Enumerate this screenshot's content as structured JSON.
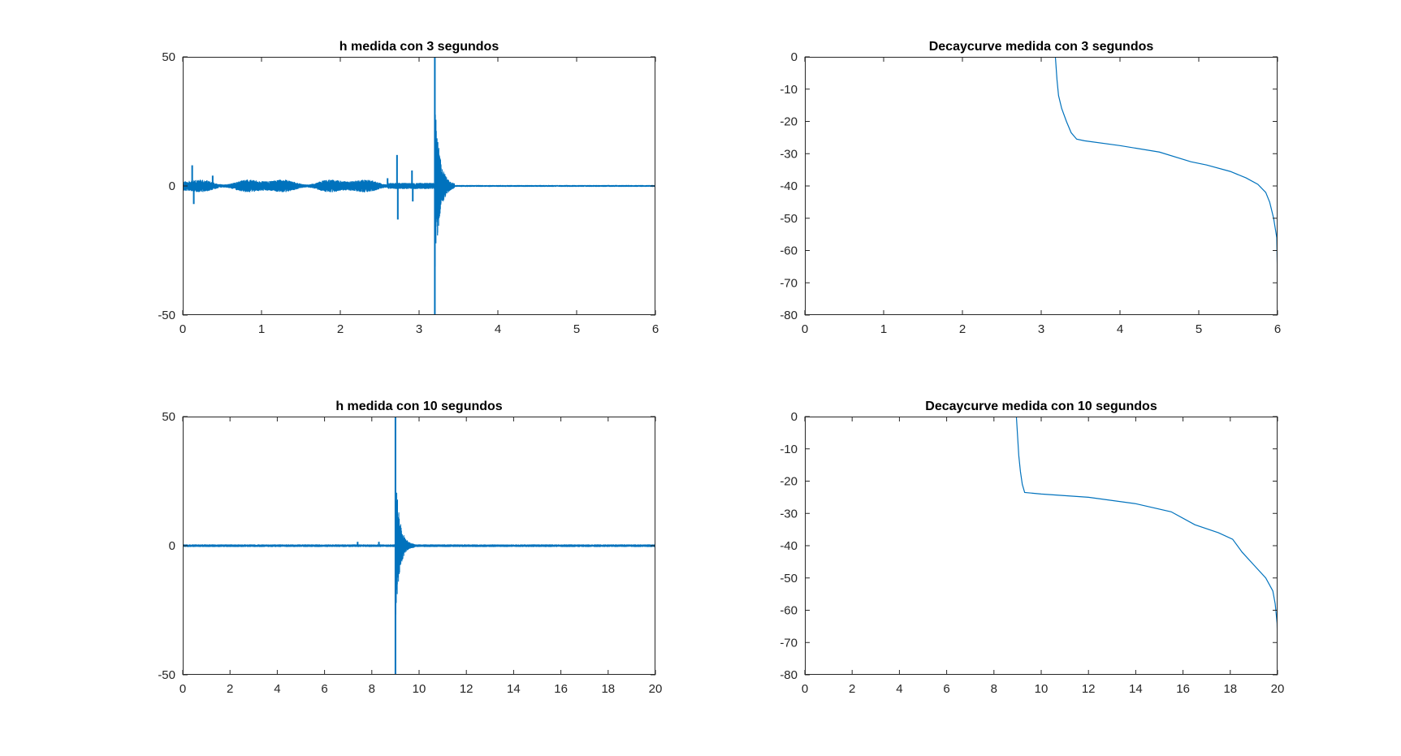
{
  "figure": {
    "background": "#ffffff",
    "line_color": "#0072bd",
    "axis_color": "#262626"
  },
  "chart_data": [
    {
      "id": "h3",
      "type": "line",
      "title": "h medida con 3 segundos",
      "xlabel": "",
      "ylabel": "",
      "xlim": [
        0,
        6
      ],
      "ylim": [
        -50,
        50
      ],
      "xticks": [
        0,
        1,
        2,
        3,
        4,
        5,
        6
      ],
      "yticks": [
        -50,
        0,
        50
      ],
      "grid": false,
      "series_style": "impulse",
      "spikes": [
        {
          "x": 0.12,
          "amp": 8
        },
        {
          "x": 0.14,
          "amp": -7
        },
        {
          "x": 0.38,
          "amp": 4
        },
        {
          "x": 2.6,
          "amp": 3
        },
        {
          "x": 2.72,
          "amp": 12
        },
        {
          "x": 2.73,
          "amp": -13
        },
        {
          "x": 2.91,
          "amp": 6
        },
        {
          "x": 2.92,
          "amp": -6
        },
        {
          "x": 3.2,
          "amp": 50
        },
        {
          "x": 3.2,
          "amp": -50
        }
      ],
      "decay_peak_x": 3.2
    },
    {
      "id": "dc3",
      "type": "line",
      "title": "Decaycurve medida con 3 segundos",
      "xlabel": "",
      "ylabel": "",
      "xlim": [
        0,
        6
      ],
      "ylim": [
        -80,
        0
      ],
      "xticks": [
        0,
        1,
        2,
        3,
        4,
        5,
        6
      ],
      "yticks": [
        -80,
        -70,
        -60,
        -50,
        -40,
        -30,
        -20,
        -10,
        0
      ],
      "grid": false,
      "x": [
        0,
        3.18,
        3.2,
        3.22,
        3.26,
        3.32,
        3.38,
        3.45,
        3.55,
        4.0,
        4.5,
        4.9,
        5.1,
        5.4,
        5.6,
        5.75,
        5.85,
        5.9,
        5.95,
        5.99,
        6.0,
        6.0
      ],
      "y": [
        0,
        0,
        -7,
        -12,
        -16,
        -20,
        -23.5,
        -25.5,
        -26,
        -27.5,
        -29.5,
        -32.5,
        -33.5,
        -35.5,
        -37.5,
        -39.5,
        -42,
        -45,
        -50,
        -56,
        -70,
        -80
      ]
    },
    {
      "id": "h10",
      "type": "line",
      "title": "h medida con 10 segundos",
      "xlabel": "",
      "ylabel": "",
      "xlim": [
        0,
        20
      ],
      "ylim": [
        -50,
        50
      ],
      "xticks": [
        0,
        2,
        4,
        6,
        8,
        10,
        12,
        14,
        16,
        18,
        20
      ],
      "yticks": [
        -50,
        0,
        50
      ],
      "grid": false,
      "series_style": "impulse",
      "spikes": [
        {
          "x": 7.4,
          "amp": 1.5
        },
        {
          "x": 8.3,
          "amp": 1.5
        },
        {
          "x": 9.0,
          "amp": 50
        },
        {
          "x": 9.0,
          "amp": -50
        }
      ],
      "decay_peak_x": 9.0
    },
    {
      "id": "dc10",
      "type": "line",
      "title": "Decaycurve medida con 10 segundos",
      "xlabel": "",
      "ylabel": "",
      "xlim": [
        0,
        20
      ],
      "ylim": [
        -80,
        0
      ],
      "xticks": [
        0,
        2,
        4,
        6,
        8,
        10,
        12,
        14,
        16,
        18,
        20
      ],
      "yticks": [
        -80,
        -70,
        -60,
        -50,
        -40,
        -30,
        -20,
        -10,
        0
      ],
      "grid": false,
      "x": [
        0,
        8.95,
        9.0,
        9.05,
        9.12,
        9.2,
        9.3,
        10,
        12,
        14,
        15.5,
        16.5,
        17.5,
        18.1,
        18.5,
        19.0,
        19.5,
        19.8,
        19.9,
        19.98,
        20.0,
        20.0
      ],
      "y": [
        0,
        0,
        -6,
        -12,
        -17,
        -21,
        -23.5,
        -24,
        -25,
        -27,
        -29.5,
        -33.5,
        -36,
        -38,
        -42,
        -46,
        -50,
        -54,
        -58,
        -64,
        -70,
        -80
      ]
    }
  ]
}
